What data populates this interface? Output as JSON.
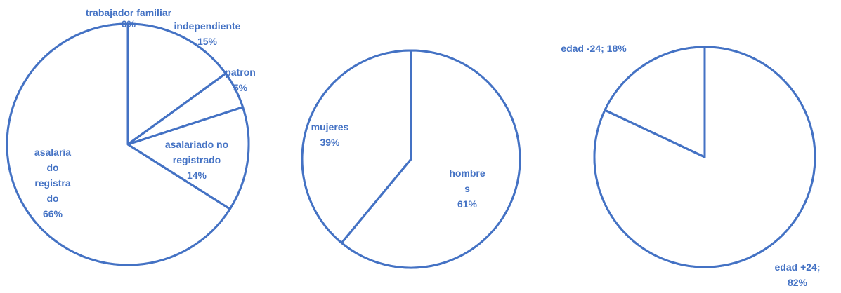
{
  "chart_data": [
    {
      "type": "pie",
      "slices": [
        {
          "label": "trabajador familiar",
          "value": 0,
          "pct": "0%"
        },
        {
          "label": "independiente",
          "value": 15,
          "pct": "15%"
        },
        {
          "label": "patron",
          "value": 5,
          "pct": "5%"
        },
        {
          "label": "asalariado no registrado",
          "value": 14,
          "pct": "14%"
        },
        {
          "label": "asalariado registrado",
          "value": 66,
          "pct": "66%"
        }
      ],
      "label_lines": [
        [
          "trabajador familiar",
          "0%"
        ],
        [
          "independiente",
          "15%"
        ],
        [
          "patron",
          "5%"
        ],
        [
          "asalariado no",
          "registrado",
          "14%"
        ],
        [
          "asalaria",
          "do",
          "registra",
          "do",
          "66%"
        ]
      ]
    },
    {
      "type": "pie",
      "slices": [
        {
          "label": "hombres",
          "value": 61,
          "pct": "61%"
        },
        {
          "label": "mujeres",
          "value": 39,
          "pct": "39%"
        }
      ],
      "label_lines": [
        [
          "hombre",
          "s",
          "61%"
        ],
        [
          "mujeres",
          "39%"
        ]
      ]
    },
    {
      "type": "pie",
      "slices": [
        {
          "label": "edad +24",
          "value": 82,
          "pct": "82%"
        },
        {
          "label": "edad -24",
          "value": 18,
          "pct": "18%"
        }
      ],
      "label_lines": [
        [
          "edad +24;",
          "82%"
        ],
        [
          "edad -24; 18%"
        ]
      ]
    }
  ],
  "colors": {
    "stroke": "#4472c4",
    "fill": "#ffffff",
    "text": "#4472c4"
  }
}
